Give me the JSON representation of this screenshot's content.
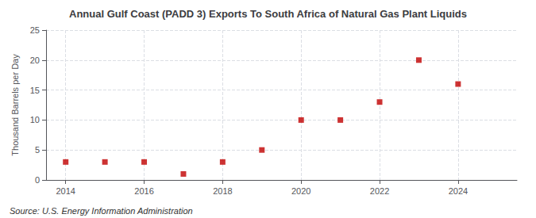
{
  "chart_data": {
    "type": "scatter",
    "title": "Annual Gulf Coast (PADD 3) Exports To South Africa of Natural Gas Plant Liquids",
    "ylabel": "Thousand Barrels per Day",
    "annotations": [
      "Source: U.S. Energy Information Administration"
    ],
    "x": [
      2014,
      2015,
      2016,
      2017,
      2018,
      2019,
      2020,
      2021,
      2022,
      2023,
      2024
    ],
    "values": [
      3,
      3,
      3,
      1,
      3,
      5,
      10,
      10,
      13,
      20,
      16
    ],
    "xlim": [
      2013.5,
      2025.5
    ],
    "xticks": [
      2014,
      2016,
      2018,
      2020,
      2022,
      2024
    ],
    "ylim": [
      0,
      25
    ],
    "yticks": [
      0,
      5,
      10,
      15,
      20,
      25
    ],
    "color": "#c00000",
    "marker": "square",
    "grid": true
  }
}
